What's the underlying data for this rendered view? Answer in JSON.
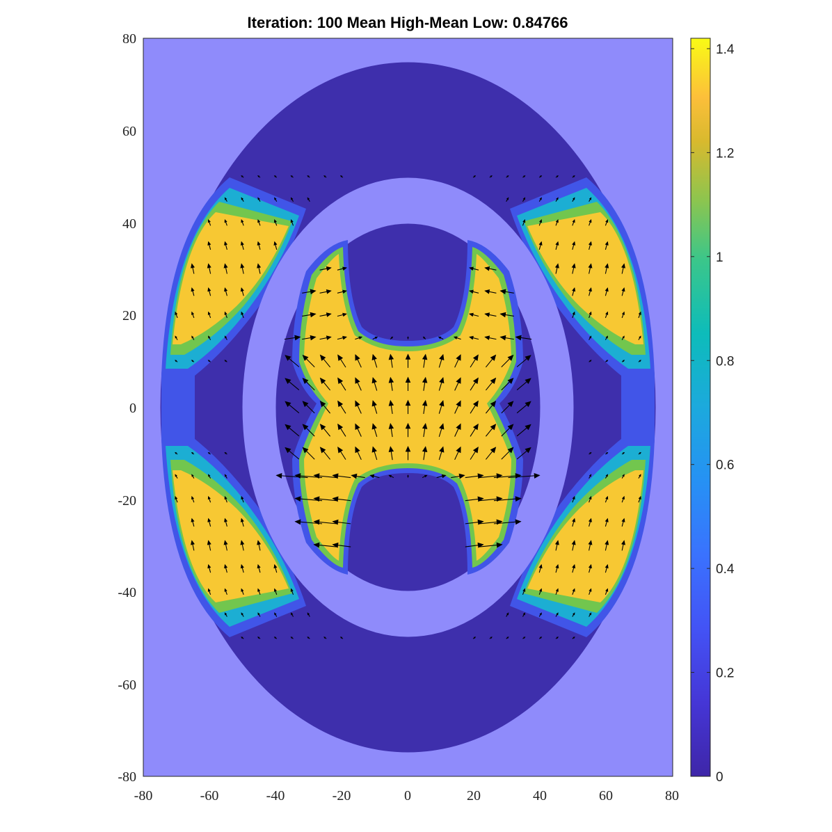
{
  "chart_data": {
    "type": "heatmap",
    "subtype": "filled contour with quiver (vector field) overlay",
    "title": "Iteration: 100 Mean High-Mean Low: 0.84766",
    "xlabel": "",
    "ylabel": "",
    "xlim": [
      -80,
      80
    ],
    "ylim": [
      -80,
      80
    ],
    "x_ticks": [
      "-80",
      "-60",
      "-40",
      "-20",
      "0",
      "20",
      "40",
      "60",
      "80"
    ],
    "y_ticks": [
      "80",
      "60",
      "40",
      "20",
      "0",
      "-20",
      "-40",
      "-60",
      "-80"
    ],
    "grid": false,
    "colorbar": {
      "colormap": "parula",
      "range": [
        0,
        1.42
      ],
      "ticks": [
        "1.4",
        "1.2",
        "1",
        "0.8",
        "0.6",
        "0.4",
        "0.2",
        "0"
      ],
      "tick_values": [
        1.4,
        1.2,
        1.0,
        0.8,
        0.6,
        0.4,
        0.2,
        0
      ]
    },
    "geometry": {
      "outer_ring": {
        "semi_axis_x": 74,
        "semi_axis_y": 74
      },
      "gap_ring": {
        "semi_axis_x": 50,
        "semi_axis_y": 50
      },
      "inner_region": {
        "semi_axis_x": 40,
        "semi_axis_y": 40
      },
      "background_value": 0.08,
      "low_value": 0.04,
      "high_value": 1.3
    },
    "regions": [
      {
        "name": "outer ring upper-left lobe",
        "center": [
          -57,
          30
        ],
        "value": 1.3
      },
      {
        "name": "outer ring upper-right lobe",
        "center": [
          57,
          30
        ],
        "value": 1.3
      },
      {
        "name": "outer ring lower-left lobe",
        "center": [
          -57,
          -30
        ],
        "value": 1.3
      },
      {
        "name": "outer ring lower-right lobe",
        "center": [
          57,
          -30
        ],
        "value": 1.3
      },
      {
        "name": "inner H-shaped region",
        "center": [
          0,
          0
        ],
        "value": 1.3
      },
      {
        "name": "inner top notch",
        "center": [
          0,
          28
        ],
        "value": 0.04
      },
      {
        "name": "inner bottom notch",
        "center": [
          0,
          -28
        ],
        "value": 0.04
      }
    ],
    "colors": {
      "background": "#8f8bfb",
      "low": "#3e2fac",
      "mid_low": "#4155e8",
      "mid": "#1caed3",
      "mid_high": "#72c64e",
      "high": "#f7c833",
      "arrows": "#000000"
    }
  }
}
